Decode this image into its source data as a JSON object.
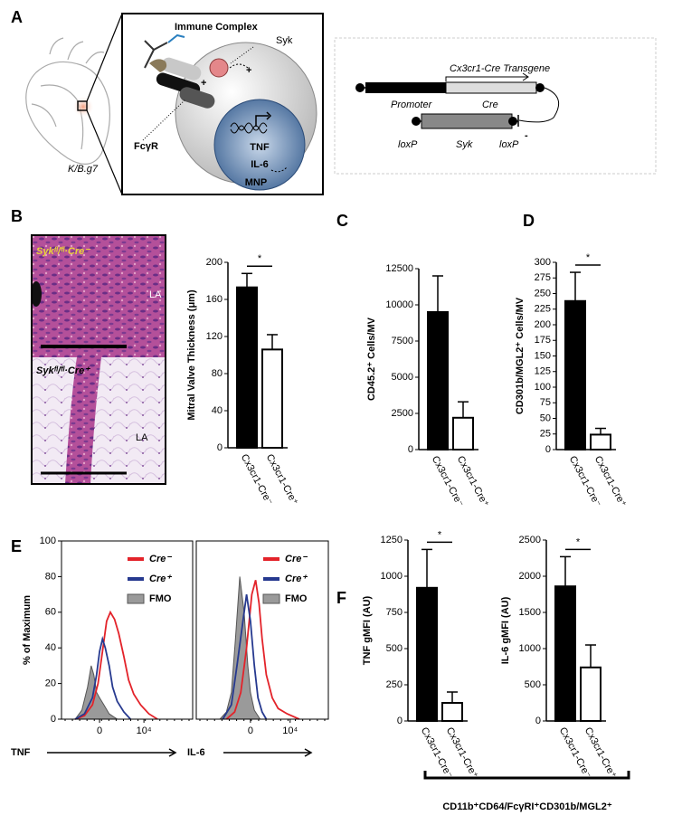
{
  "panel_labels": [
    "A",
    "B",
    "C",
    "D",
    "E",
    "F"
  ],
  "diagram": {
    "heart_label": "K/B.g7",
    "immune_complex": "Immune Complex",
    "syk": "Syk",
    "plus": "+",
    "fcgr": "FcγR",
    "tnf": "TNF",
    "il6": "IL-6",
    "mnp": "MNP",
    "transgene": "Cx3cr1-Cre Transgene",
    "promoter": "Promoter",
    "cre": "Cre",
    "loxp": "loxP",
    "syk_gene": "Syk",
    "minus": "-"
  },
  "histology": {
    "top_label": "Sykᶠˡ/ᶠˡ·Cre⁻",
    "bottom_label": "Sykᶠˡ/ᶠˡ·Cre⁺",
    "la": "LA"
  },
  "chart_data": [
    {
      "type": "bar",
      "y_label": "Mitral Valve Thickness (μm)",
      "categories": [
        "Cx3cr1-Cre⁻",
        "Cx3cr1-Cre⁺"
      ],
      "values": [
        173,
        106
      ],
      "errors": [
        15,
        16
      ],
      "colors": [
        "#000000",
        "#ffffff"
      ],
      "ylim": [
        0,
        200
      ],
      "yticks": [
        0,
        40,
        80,
        120,
        160,
        200
      ],
      "significance": "*"
    },
    {
      "type": "bar",
      "y_label": "CD45.2⁺ Cells/MV",
      "categories": [
        "Cx3cr1-Cre⁻",
        "Cx3cr1-Cre⁺"
      ],
      "values": [
        9500,
        2200
      ],
      "errors": [
        2500,
        1100
      ],
      "colors": [
        "#000000",
        "#ffffff"
      ],
      "ylim": [
        0,
        12500
      ],
      "yticks": [
        0,
        2500,
        5000,
        7500,
        10000,
        12500
      ]
    },
    {
      "type": "bar",
      "y_label": "CD301b/MGL2⁺ Cells/MV",
      "categories": [
        "Cx3cr1-Cre⁻",
        "Cx3cr1-Cre⁺"
      ],
      "values": [
        238,
        24
      ],
      "errors": [
        46,
        10
      ],
      "colors": [
        "#000000",
        "#ffffff"
      ],
      "ylim": [
        0,
        300
      ],
      "yticks": [
        0,
        25,
        50,
        75,
        100,
        125,
        150,
        175,
        200,
        225,
        250,
        275,
        300
      ],
      "significance": "*"
    },
    {
      "type": "line",
      "x_label": "TNF",
      "y_label": "% of Maximum",
      "x_scale": "biexponential",
      "xlim": [
        -6500,
        270000
      ],
      "xticks": [
        0,
        {
          "value": 10000,
          "label": "10⁴"
        }
      ],
      "ylim": [
        0,
        100
      ],
      "yticks": [
        0,
        20,
        40,
        60,
        80,
        100
      ],
      "series": [
        {
          "name": "Cre⁻",
          "color": "#e3232a",
          "x": [
            -2500,
            -1200,
            -500,
            -100,
            200,
            500,
            800,
            1200,
            1700,
            2500,
            3500,
            5000,
            8000,
            14000,
            25000
          ],
          "values": [
            0,
            2,
            8,
            20,
            38,
            55,
            60,
            56,
            48,
            35,
            22,
            14,
            8,
            3,
            0
          ]
        },
        {
          "name": "Cre⁺",
          "color": "#26398f",
          "x": [
            -2500,
            -1200,
            -500,
            -200,
            0,
            200,
            400,
            700,
            1000,
            1500,
            2500,
            4000
          ],
          "values": [
            0,
            3,
            12,
            25,
            38,
            45,
            40,
            30,
            18,
            10,
            4,
            0
          ]
        },
        {
          "name": "FMO",
          "color": "#9a9a9a",
          "fill": true,
          "x": [
            -2500,
            -1500,
            -900,
            -600,
            -400,
            -200,
            0,
            300,
            700,
            1500
          ],
          "values": [
            0,
            5,
            18,
            30,
            25,
            15,
            12,
            8,
            3,
            0
          ]
        }
      ]
    },
    {
      "type": "line",
      "x_label": "IL-6",
      "x_scale": "biexponential",
      "xlim": [
        -30000,
        180000
      ],
      "xticks": [
        0,
        {
          "value": 10000,
          "label": "10⁴"
        }
      ],
      "ylim": [
        0,
        100
      ],
      "series": [
        {
          "name": "Cre⁻",
          "color": "#e3232a",
          "x": [
            -3000,
            -1500,
            -800,
            -300,
            100,
            400,
            700,
            1000,
            1500,
            2500,
            4000,
            8000,
            20000
          ],
          "values": [
            0,
            4,
            15,
            40,
            70,
            78,
            65,
            45,
            25,
            12,
            6,
            3,
            0
          ]
        },
        {
          "name": "Cre⁺",
          "color": "#26398f",
          "x": [
            -4000,
            -2000,
            -1200,
            -600,
            -300,
            0,
            300,
            600,
            1000,
            1500
          ],
          "values": [
            0,
            8,
            30,
            55,
            70,
            55,
            30,
            12,
            4,
            0
          ]
        },
        {
          "name": "FMO",
          "color": "#9a9a9a",
          "fill": true,
          "x": [
            -5000,
            -3000,
            -2000,
            -1400,
            -900,
            -500,
            -200,
            0,
            300,
            800
          ],
          "values": [
            0,
            4,
            15,
            45,
            80,
            60,
            30,
            15,
            5,
            0
          ]
        }
      ]
    },
    {
      "type": "bar",
      "y_label": "TNF gMFI (AU)",
      "categories": [
        "Cx3cr1-Cre⁻",
        "Cx3cr1-Cre⁺"
      ],
      "values": [
        920,
        125
      ],
      "errors": [
        265,
        75
      ],
      "colors": [
        "#000000",
        "#ffffff"
      ],
      "ylim": [
        0,
        1250
      ],
      "yticks": [
        0,
        250,
        500,
        750,
        1000,
        1250
      ],
      "significance": "*"
    },
    {
      "type": "bar",
      "y_label": "IL-6 gMFI (AU)",
      "categories": [
        "Cx3cr1-Cre⁻",
        "Cx3cr1-Cre⁺"
      ],
      "values": [
        1860,
        740
      ],
      "errors": [
        410,
        310
      ],
      "colors": [
        "#000000",
        "#ffffff"
      ],
      "ylim": [
        0,
        2500
      ],
      "yticks": [
        0,
        500,
        1000,
        1500,
        2000,
        2500
      ],
      "significance": "*"
    }
  ],
  "footer": "CD11b⁺CD64/FcγRI⁺CD301b/MGL2⁺"
}
